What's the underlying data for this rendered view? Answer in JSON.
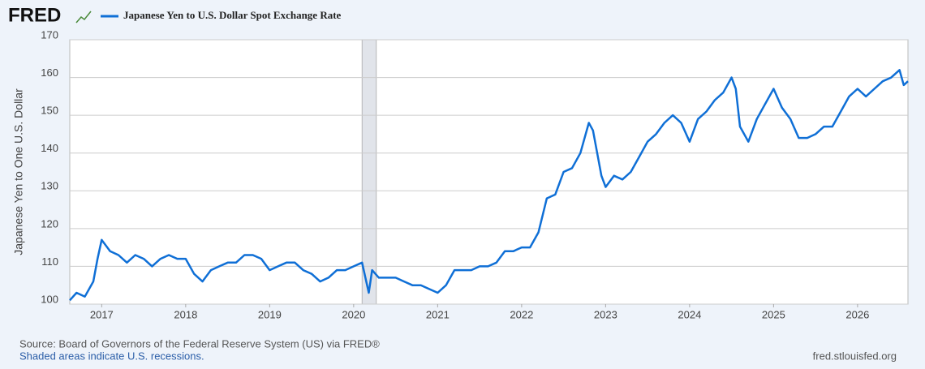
{
  "brand": "FRED",
  "chart_data": {
    "type": "line",
    "ylabel": "Japanese Yen to One U.S. Dollar",
    "x": [
      2016.62,
      2016.7,
      2016.8,
      2016.9,
      2016.95,
      2017.0,
      2017.1,
      2017.2,
      2017.3,
      2017.4,
      2017.5,
      2017.6,
      2017.7,
      2017.8,
      2017.9,
      2018.0,
      2018.1,
      2018.2,
      2018.3,
      2018.4,
      2018.5,
      2018.6,
      2018.7,
      2018.8,
      2018.9,
      2019.0,
      2019.1,
      2019.2,
      2019.3,
      2019.4,
      2019.5,
      2019.6,
      2019.7,
      2019.8,
      2019.9,
      2020.0,
      2020.1,
      2020.18,
      2020.22,
      2020.3,
      2020.4,
      2020.5,
      2020.6,
      2020.7,
      2020.8,
      2020.9,
      2021.0,
      2021.1,
      2021.2,
      2021.3,
      2021.4,
      2021.5,
      2021.6,
      2021.7,
      2021.8,
      2021.9,
      2022.0,
      2022.1,
      2022.2,
      2022.3,
      2022.4,
      2022.5,
      2022.6,
      2022.7,
      2022.75,
      2022.8,
      2022.85,
      2022.9,
      2022.95,
      2023.0,
      2023.1,
      2023.2,
      2023.3,
      2023.4,
      2023.5,
      2023.6,
      2023.7,
      2023.8,
      2023.9,
      2024.0,
      2024.1,
      2024.2,
      2024.3,
      2024.4,
      2024.5,
      2024.55,
      2024.6,
      2024.7,
      2024.8,
      2024.9,
      2025.0,
      2025.1,
      2025.2,
      2025.3,
      2025.4,
      2025.5,
      2025.6,
      2025.7,
      2025.8,
      2025.9,
      2026.0,
      2026.1,
      2026.2,
      2026.3,
      2026.4,
      2026.5,
      2026.55,
      2026.6
    ],
    "series": [
      {
        "name": "Japanese Yen to U.S. Dollar Spot Exchange Rate",
        "color": "#0f6fd6",
        "values": [
          101,
          103,
          102,
          106,
          112,
          117,
          114,
          113,
          111,
          113,
          112,
          110,
          112,
          113,
          112,
          112,
          108,
          106,
          109,
          110,
          111,
          111,
          113,
          113,
          112,
          109,
          110,
          111,
          111,
          109,
          108,
          106,
          107,
          109,
          109,
          110,
          111,
          103,
          109,
          107,
          107,
          107,
          106,
          105,
          105,
          104,
          103,
          105,
          109,
          109,
          109,
          110,
          110,
          111,
          114,
          114,
          115,
          115,
          119,
          128,
          129,
          135,
          136,
          140,
          144,
          148,
          146,
          140,
          134,
          131,
          134,
          133,
          135,
          139,
          143,
          145,
          148,
          150,
          148,
          143,
          149,
          151,
          154,
          156,
          160,
          157,
          147,
          143,
          149,
          153,
          157,
          152,
          149,
          144,
          144,
          145,
          147,
          147,
          151,
          155,
          157,
          155,
          157,
          159,
          160,
          162,
          158,
          159
        ]
      }
    ],
    "recessions": [
      [
        2020.1,
        2020.27
      ]
    ],
    "xlim": [
      2016.62,
      2026.6
    ],
    "xticks": [
      2017,
      2018,
      2019,
      2020,
      2021,
      2022,
      2023,
      2024,
      2025,
      2026
    ],
    "ylim": [
      100,
      170
    ],
    "yticks": [
      100,
      110,
      120,
      130,
      140,
      150,
      160,
      170
    ],
    "grid": true
  },
  "footer": {
    "source": "Source: Board of Governors of the Federal Reserve System (US) via FRED®",
    "note": "Shaded areas indicate U.S. recessions.",
    "site": "fred.stlouisfed.org"
  }
}
